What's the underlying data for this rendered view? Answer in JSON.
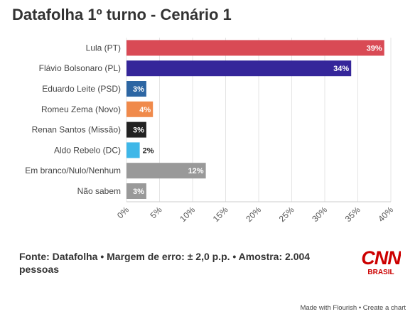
{
  "title": "Datafolha 1º turno - Cenário 1",
  "chart_data": {
    "type": "bar",
    "orientation": "horizontal",
    "categories": [
      "Lula (PT)",
      "Flávio Bolsonaro (PL)",
      "Eduardo Leite (PSD)",
      "Romeu Zema (Novo)",
      "Renan Santos (Missão)",
      "Aldo Rebelo (DC)",
      "Em branco/Nulo/Nenhum",
      "Não sabem"
    ],
    "values": [
      39,
      34,
      3,
      4,
      3,
      2,
      12,
      3
    ],
    "value_labels": [
      "39%",
      "34%",
      "3%",
      "4%",
      "3%",
      "2%",
      "12%",
      "3%"
    ],
    "colors": [
      "#d94a55",
      "#35269a",
      "#2d66a3",
      "#f08a4b",
      "#222222",
      "#3fb7e8",
      "#999999",
      "#999999"
    ],
    "xlim": [
      0,
      40
    ],
    "xticks": [
      "0%",
      "5%",
      "10%",
      "15%",
      "20%",
      "25%",
      "30%",
      "35%",
      "40%"
    ],
    "grid": true
  },
  "footer": {
    "source": "Fonte: Datafolha • Margem de erro: ± 2,0 p.p. • Amostra: 2.004 pessoas",
    "logo_main": "CNN",
    "logo_sub": "BRASIL",
    "logo_color": "#cc0000"
  },
  "credit": {
    "made_with": "Made with Flourish",
    "separator": " • ",
    "create": "Create a chart"
  }
}
